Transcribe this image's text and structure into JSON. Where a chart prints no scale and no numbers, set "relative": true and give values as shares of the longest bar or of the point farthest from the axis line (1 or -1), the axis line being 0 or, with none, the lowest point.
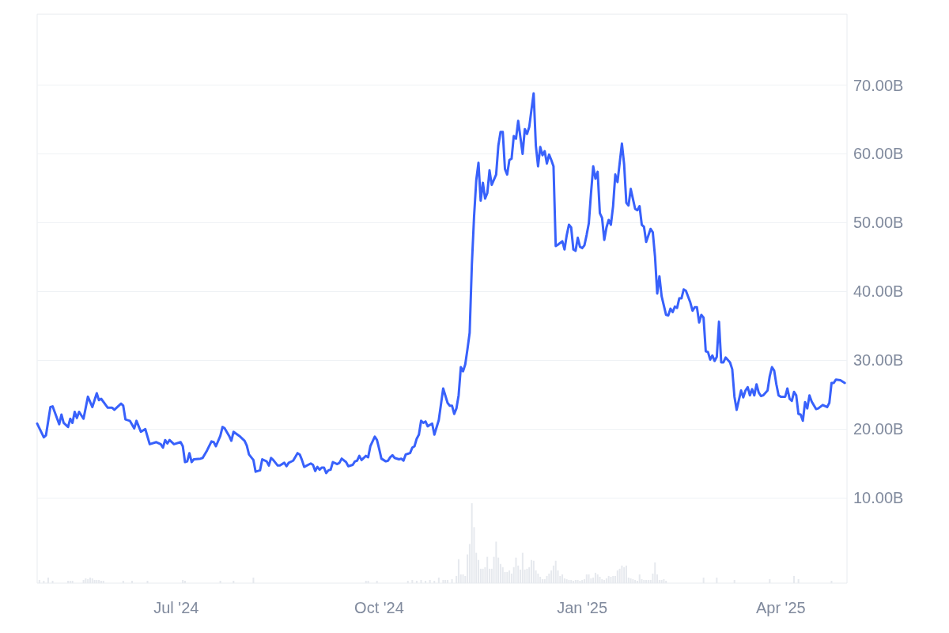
{
  "chart_data": [
    {
      "type": "line",
      "xlim": [
        "2024-04-29",
        "2025-05-01"
      ],
      "xticks": [
        {
          "value": "2024-07-01",
          "label": "Jul '24"
        },
        {
          "value": "2024-10-01",
          "label": "Oct '24"
        },
        {
          "value": "2025-01-01",
          "label": "Jan '25"
        },
        {
          "value": "2025-04-01",
          "label": "Apr '25"
        }
      ],
      "ylim": [
        -2.4,
        80.3
      ],
      "yticks": [
        {
          "value": 10,
          "label": "10.00B"
        },
        {
          "value": 20,
          "label": "20.00B"
        },
        {
          "value": 30,
          "label": "30.00B"
        },
        {
          "value": 40,
          "label": "40.00B"
        },
        {
          "value": 50,
          "label": "50.00B"
        },
        {
          "value": 60,
          "label": "60.00B"
        },
        {
          "value": 70,
          "label": "70.00B"
        }
      ],
      "grid": "y",
      "marker": "none",
      "color": "#3861fb",
      "x": [
        "2024-04-29",
        "2024-05-02",
        "2024-05-03",
        "2024-05-05",
        "2024-05-06",
        "2024-05-09",
        "2024-05-10",
        "2024-05-11",
        "2024-05-13",
        "2024-05-14",
        "2024-05-15",
        "2024-05-16",
        "2024-05-17",
        "2024-05-18",
        "2024-05-20",
        "2024-05-22",
        "2024-05-24",
        "2024-05-26",
        "2024-05-27",
        "2024-05-28",
        "2024-05-31",
        "2024-06-02",
        "2024-06-03",
        "2024-06-06",
        "2024-06-07",
        "2024-06-08",
        "2024-06-10",
        "2024-06-12",
        "2024-06-13",
        "2024-06-15",
        "2024-06-17",
        "2024-06-19",
        "2024-06-22",
        "2024-06-24",
        "2024-06-25",
        "2024-06-26",
        "2024-06-27",
        "2024-06-28",
        "2024-06-30",
        "2024-07-03",
        "2024-07-04",
        "2024-07-05",
        "2024-07-06",
        "2024-07-07",
        "2024-07-08",
        "2024-07-09",
        "2024-07-12",
        "2024-07-13",
        "2024-07-15",
        "2024-07-17",
        "2024-07-18",
        "2024-07-19",
        "2024-07-21",
        "2024-07-22",
        "2024-07-23",
        "2024-07-25",
        "2024-07-26",
        "2024-07-27",
        "2024-07-30",
        "2024-08-01",
        "2024-08-02",
        "2024-08-03",
        "2024-08-05",
        "2024-08-06",
        "2024-08-08",
        "2024-08-09",
        "2024-08-11",
        "2024-08-12",
        "2024-08-13",
        "2024-08-14",
        "2024-08-16",
        "2024-08-17",
        "2024-08-19",
        "2024-08-20",
        "2024-08-21",
        "2024-08-23",
        "2024-08-25",
        "2024-08-26",
        "2024-08-27",
        "2024-08-28",
        "2024-08-31",
        "2024-09-01",
        "2024-09-02",
        "2024-09-03",
        "2024-09-04",
        "2024-09-05",
        "2024-09-06",
        "2024-09-07",
        "2024-09-08",
        "2024-09-09",
        "2024-09-10",
        "2024-09-12",
        "2024-09-13",
        "2024-09-14",
        "2024-09-16",
        "2024-09-17",
        "2024-09-19",
        "2024-09-20",
        "2024-09-21",
        "2024-09-22",
        "2024-09-23",
        "2024-09-25",
        "2024-09-26",
        "2024-09-27",
        "2024-09-29",
        "2024-09-30",
        "2024-10-01",
        "2024-10-02",
        "2024-10-04",
        "2024-10-05",
        "2024-10-06",
        "2024-10-07",
        "2024-10-08",
        "2024-10-10",
        "2024-10-11",
        "2024-10-12",
        "2024-10-13",
        "2024-10-14",
        "2024-10-15",
        "2024-10-16",
        "2024-10-17",
        "2024-10-18",
        "2024-10-19",
        "2024-10-20",
        "2024-10-21",
        "2024-10-22",
        "2024-10-23",
        "2024-10-25",
        "2024-10-26",
        "2024-10-28",
        "2024-10-30",
        "2024-11-01",
        "2024-11-02",
        "2024-11-03",
        "2024-11-04",
        "2024-11-05",
        "2024-11-06",
        "2024-11-07",
        "2024-11-08",
        "2024-11-09",
        "2024-11-10",
        "2024-11-11",
        "2024-11-12",
        "2024-11-13",
        "2024-11-14",
        "2024-11-15",
        "2024-11-16",
        "2024-11-17",
        "2024-11-18",
        "2024-11-19",
        "2024-11-20",
        "2024-11-21",
        "2024-11-23",
        "2024-11-24",
        "2024-11-25",
        "2024-11-26",
        "2024-11-27",
        "2024-11-28",
        "2024-11-29",
        "2024-11-30",
        "2024-12-01",
        "2024-12-02",
        "2024-12-03",
        "2024-12-05",
        "2024-12-06",
        "2024-12-07",
        "2024-12-08",
        "2024-12-09",
        "2024-12-10",
        "2024-12-11",
        "2024-12-12",
        "2024-12-13",
        "2024-12-14",
        "2024-12-15",
        "2024-12-16",
        "2024-12-17",
        "2024-12-18",
        "2024-12-19",
        "2024-12-20",
        "2024-12-21",
        "2024-12-23",
        "2024-12-24",
        "2024-12-25",
        "2024-12-26",
        "2024-12-27",
        "2024-12-28",
        "2024-12-29",
        "2024-12-30",
        "2024-12-31",
        "2025-01-01",
        "2025-01-02",
        "2025-01-03",
        "2025-01-04",
        "2025-01-05",
        "2025-01-06",
        "2025-01-07",
        "2025-01-08",
        "2025-01-09",
        "2025-01-10",
        "2025-01-11",
        "2025-01-12",
        "2025-01-13",
        "2025-01-14",
        "2025-01-15",
        "2025-01-16",
        "2025-01-17",
        "2025-01-19",
        "2025-01-20",
        "2025-01-21",
        "2025-01-22",
        "2025-01-23",
        "2025-01-25",
        "2025-01-26",
        "2025-01-27",
        "2025-01-28",
        "2025-01-29",
        "2025-01-30",
        "2025-02-01",
        "2025-02-02",
        "2025-02-03",
        "2025-02-04",
        "2025-02-05",
        "2025-02-06",
        "2025-02-08",
        "2025-02-09",
        "2025-02-10",
        "2025-02-11",
        "2025-02-12",
        "2025-02-13",
        "2025-02-14",
        "2025-02-15",
        "2025-02-16",
        "2025-02-17",
        "2025-02-19",
        "2025-02-20",
        "2025-02-21",
        "2025-02-22",
        "2025-02-23",
        "2025-02-24",
        "2025-02-25",
        "2025-02-26",
        "2025-02-27",
        "2025-02-28",
        "2025-03-01",
        "2025-03-02",
        "2025-03-03",
        "2025-03-04",
        "2025-03-05",
        "2025-03-06",
        "2025-03-07",
        "2025-03-09",
        "2025-03-10",
        "2025-03-11",
        "2025-03-12",
        "2025-03-13",
        "2025-03-14",
        "2025-03-15",
        "2025-03-16",
        "2025-03-17",
        "2025-03-18",
        "2025-03-19",
        "2025-03-20",
        "2025-03-21",
        "2025-03-22",
        "2025-03-23",
        "2025-03-24",
        "2025-03-26",
        "2025-03-27",
        "2025-03-28",
        "2025-03-29",
        "2025-03-30",
        "2025-03-31",
        "2025-04-01",
        "2025-04-03",
        "2025-04-04",
        "2025-04-05",
        "2025-04-06",
        "2025-04-07",
        "2025-04-08",
        "2025-04-09",
        "2025-04-10",
        "2025-04-11",
        "2025-04-12",
        "2025-04-13",
        "2025-04-14",
        "2025-04-15",
        "2025-04-17",
        "2025-04-18",
        "2025-04-20",
        "2025-04-22",
        "2025-04-23",
        "2025-04-24",
        "2025-04-25",
        "2025-04-26",
        "2025-04-28",
        "2025-04-29",
        "2025-04-30"
      ],
      "values": [
        20.8,
        18.8,
        19.1,
        23.2,
        23.3,
        20.7,
        22.1,
        20.9,
        20.3,
        21.5,
        20.9,
        22.5,
        21.6,
        22.5,
        21.5,
        24.7,
        23.2,
        25.2,
        24.2,
        24.4,
        23.1,
        23.1,
        22.8,
        23.7,
        23.4,
        21.4,
        21.2,
        20.1,
        21.2,
        19.6,
        20.0,
        17.8,
        18.1,
        17.8,
        17.3,
        18.4,
        17.9,
        18.4,
        17.8,
        18.1,
        17.5,
        15.2,
        15.3,
        16.5,
        15.2,
        15.6,
        15.7,
        15.8,
        16.9,
        18.2,
        18.1,
        17.5,
        19.0,
        20.3,
        20.1,
        19.0,
        18.3,
        19.6,
        18.9,
        18.3,
        17.6,
        16.3,
        15.5,
        13.8,
        14.0,
        15.6,
        15.3,
        14.7,
        15.8,
        15.5,
        14.7,
        14.7,
        15.1,
        14.6,
        15.1,
        15.4,
        16.5,
        16.3,
        15.5,
        14.5,
        15.0,
        14.8,
        13.9,
        14.5,
        14.1,
        14.4,
        14.4,
        13.6,
        14.0,
        14.1,
        15.2,
        14.9,
        15.1,
        15.7,
        15.2,
        14.6,
        14.8,
        15.3,
        15.4,
        16.1,
        15.5,
        16.1,
        15.9,
        17.5,
        18.9,
        18.4,
        17.1,
        15.7,
        15.3,
        15.4,
        15.9,
        16.2,
        15.8,
        15.6,
        15.7,
        15.4,
        16.3,
        16.4,
        16.5,
        17.3,
        17.5,
        18.6,
        19.2,
        21.2,
        20.9,
        21.1,
        20.4,
        20.8,
        19.2,
        21.3,
        25.9,
        23.8,
        23.4,
        23.4,
        22.2,
        23.0,
        24.9,
        29.0,
        28.4,
        29.4,
        31.6,
        34.0,
        43.9,
        50.9,
        56.2,
        58.7,
        53.2,
        55.8,
        53.5,
        54.3,
        57.6,
        55.5,
        57.0,
        61.2,
        63.2,
        63.2,
        57.8,
        57.0,
        59.1,
        59.3,
        62.6,
        62.2,
        64.8,
        60.0,
        63.6,
        62.9,
        63.9,
        66.4,
        68.8,
        61.2,
        58.2,
        61.0,
        59.8,
        60.4,
        58.6,
        59.9,
        59.1,
        58.2,
        46.6,
        46.8,
        47.3,
        46.1,
        48.2,
        49.7,
        49.3,
        46.1,
        45.9,
        47.8,
        46.5,
        46.3,
        46.7,
        48.2,
        49.9,
        54.3,
        58.2,
        56.4,
        57.4,
        51.4,
        50.7,
        47.5,
        49.3,
        50.4,
        49.7,
        52.4,
        57.0,
        55.9,
        61.5,
        58.5,
        52.9,
        52.5,
        54.9,
        52.0,
        51.8,
        52.4,
        49.7,
        49.4,
        47.2,
        49.1,
        48.6,
        45.1,
        39.7,
        42.2,
        39.3,
        36.6,
        36.5,
        37.5,
        37.0,
        37.8,
        37.6,
        39.0,
        39.0,
        40.3,
        40.1,
        38.4,
        37.2,
        37.7,
        37.7,
        35.5,
        36.6,
        36.2,
        31.3,
        31.2,
        30.1,
        30.7,
        29.9,
        30.5,
        35.6,
        29.7,
        29.7,
        30.4,
        29.7,
        28.7,
        24.7,
        22.8,
        24.2,
        25.6,
        24.6,
        25.6,
        26.1,
        24.9,
        25.8,
        24.9,
        26.5,
        25.3,
        24.8,
        24.9,
        25.6,
        27.7,
        29.0,
        28.5,
        26.5,
        24.9,
        24.7,
        24.7,
        25.9,
        24.4,
        24.1,
        25.4,
        24.9,
        22.2,
        22.1,
        21.2,
        23.9,
        23.0,
        24.9,
        24.0,
        22.9,
        23.0,
        23.5,
        23.2,
        23.8,
        26.7,
        26.7,
        27.2,
        27.1,
        26.9,
        26.7
      ]
    },
    {
      "type": "bar",
      "relative": true,
      "tick_labels": false,
      "xlim": [
        "2024-04-29",
        "2025-05-01"
      ],
      "color": "#e6e9ee",
      "x": [
        "2024-04-30",
        "2024-05-02",
        "2024-05-04",
        "2024-05-06",
        "2024-05-13",
        "2024-05-14",
        "2024-05-15",
        "2024-05-20",
        "2024-05-21",
        "2024-05-22",
        "2024-05-23",
        "2024-05-24",
        "2024-05-25",
        "2024-05-26",
        "2024-05-27",
        "2024-05-28",
        "2024-05-29",
        "2024-06-07",
        "2024-06-11",
        "2024-06-18",
        "2024-07-04",
        "2024-07-05",
        "2024-07-21",
        "2024-07-27",
        "2024-08-05",
        "2024-09-25",
        "2024-09-26",
        "2024-09-30",
        "2024-10-14",
        "2024-10-16",
        "2024-10-18",
        "2024-10-20",
        "2024-10-22",
        "2024-10-24",
        "2024-10-26",
        "2024-10-28",
        "2024-10-30",
        "2024-10-31",
        "2024-11-01",
        "2024-11-03",
        "2024-11-05",
        "2024-11-06",
        "2024-11-07",
        "2024-11-08",
        "2024-11-09",
        "2024-11-10",
        "2024-11-11",
        "2024-11-12",
        "2024-11-13",
        "2024-11-14",
        "2024-11-15",
        "2024-11-16",
        "2024-11-17",
        "2024-11-18",
        "2024-11-19",
        "2024-11-20",
        "2024-11-21",
        "2024-11-22",
        "2024-11-23",
        "2024-11-24",
        "2024-11-25",
        "2024-11-26",
        "2024-11-27",
        "2024-11-28",
        "2024-11-29",
        "2024-11-30",
        "2024-12-01",
        "2024-12-02",
        "2024-12-03",
        "2024-12-04",
        "2024-12-05",
        "2024-12-06",
        "2024-12-07",
        "2024-12-08",
        "2024-12-09",
        "2024-12-10",
        "2024-12-11",
        "2024-12-12",
        "2024-12-13",
        "2024-12-14",
        "2024-12-15",
        "2024-12-16",
        "2024-12-17",
        "2024-12-18",
        "2024-12-19",
        "2024-12-20",
        "2024-12-21",
        "2024-12-22",
        "2024-12-23",
        "2024-12-24",
        "2024-12-25",
        "2024-12-26",
        "2024-12-27",
        "2024-12-28",
        "2024-12-29",
        "2024-12-30",
        "2024-12-31",
        "2025-01-01",
        "2025-01-02",
        "2025-01-03",
        "2025-01-04",
        "2025-01-05",
        "2025-01-06",
        "2025-01-07",
        "2025-01-08",
        "2025-01-09",
        "2025-01-10",
        "2025-01-11",
        "2025-01-12",
        "2025-01-13",
        "2025-01-14",
        "2025-01-15",
        "2025-01-16",
        "2025-01-17",
        "2025-01-18",
        "2025-01-19",
        "2025-01-20",
        "2025-01-21",
        "2025-01-22",
        "2025-01-23",
        "2025-01-24",
        "2025-01-25",
        "2025-01-26",
        "2025-01-27",
        "2025-01-28",
        "2025-01-29",
        "2025-01-30",
        "2025-01-31",
        "2025-02-01",
        "2025-02-02",
        "2025-02-03",
        "2025-02-04",
        "2025-02-05",
        "2025-02-06",
        "2025-02-07",
        "2025-02-08",
        "2025-02-25",
        "2025-03-03",
        "2025-03-11",
        "2025-03-27",
        "2025-04-07",
        "2025-04-09",
        "2025-04-24"
      ],
      "values": [
        0.04,
        0.03,
        0.07,
        0.03,
        0.03,
        0.03,
        0.03,
        0.04,
        0.06,
        0.05,
        0.07,
        0.06,
        0.04,
        0.04,
        0.04,
        0.03,
        0.03,
        0.03,
        0.03,
        0.03,
        0.04,
        0.03,
        0.03,
        0.03,
        0.07,
        0.03,
        0.03,
        0.03,
        0.03,
        0.04,
        0.03,
        0.04,
        0.03,
        0.04,
        0.03,
        0.07,
        0.04,
        0.04,
        0.04,
        0.05,
        0.09,
        0.3,
        0.11,
        0.11,
        0.09,
        0.36,
        0.49,
        1,
        0.7,
        0.38,
        0.29,
        0.18,
        0.18,
        0.2,
        0.33,
        0.18,
        0.18,
        0.33,
        0.52,
        0.32,
        0.24,
        0.2,
        0.14,
        0.14,
        0.16,
        0.12,
        0.2,
        0.32,
        0.22,
        0.17,
        0.38,
        0.17,
        0.18,
        0.2,
        0.29,
        0.28,
        0.16,
        0.12,
        0.08,
        0.05,
        0.05,
        0.09,
        0.12,
        0.16,
        0.22,
        0.28,
        0.16,
        0.09,
        0.11,
        0.06,
        0.05,
        0.04,
        0.04,
        0.03,
        0.04,
        0.04,
        0.03,
        0.04,
        0.05,
        0.11,
        0.11,
        0.06,
        0.07,
        0.13,
        0.11,
        0.08,
        0.05,
        0.04,
        0.06,
        0.09,
        0.08,
        0.09,
        0.09,
        0.16,
        0.18,
        0.22,
        0.2,
        0.22,
        0.07,
        0.06,
        0.05,
        0.04,
        0.03,
        0.11,
        0.05,
        0.04,
        0.04,
        0.04,
        0.04,
        0.12,
        0.26,
        0.11,
        0.04,
        0.04,
        0.05,
        0.03,
        0.07,
        0.07,
        0.04,
        0.05,
        0.09,
        0.05,
        0.03
      ]
    }
  ]
}
